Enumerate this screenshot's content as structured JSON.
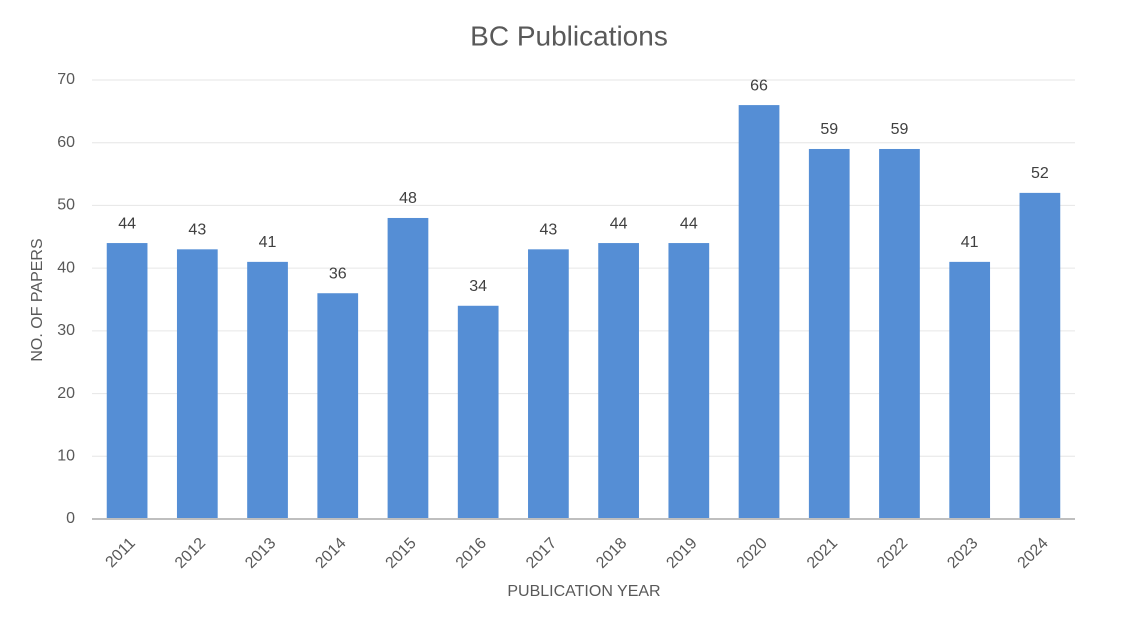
{
  "chart_data": {
    "type": "bar",
    "title": "BC Publications",
    "x_label": "PUBLICATION YEAR",
    "y_label": "NO. OF PAPERS",
    "categories": [
      "2011",
      "2012",
      "2013",
      "2014",
      "2015",
      "2016",
      "2017",
      "2018",
      "2019",
      "2020",
      "2021",
      "2022",
      "2023",
      "2024"
    ],
    "values": [
      44,
      43,
      41,
      36,
      48,
      34,
      43,
      44,
      44,
      66,
      59,
      59,
      41,
      52
    ],
    "color": "#558ed5",
    "ylim": [
      0,
      70
    ],
    "yticks": [
      0,
      10,
      20,
      30,
      40,
      50,
      60,
      70
    ],
    "grid": true
  }
}
